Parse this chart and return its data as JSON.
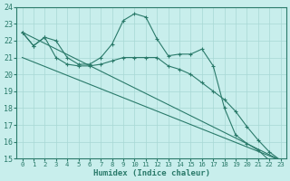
{
  "xlabel": "Humidex (Indice chaleur)",
  "xlim": [
    -0.5,
    23.5
  ],
  "ylim": [
    15,
    24
  ],
  "yticks": [
    15,
    16,
    17,
    18,
    19,
    20,
    21,
    22,
    23,
    24
  ],
  "xticks": [
    0,
    1,
    2,
    3,
    4,
    5,
    6,
    7,
    8,
    9,
    10,
    11,
    12,
    13,
    14,
    15,
    16,
    17,
    18,
    19,
    20,
    21,
    22,
    23
  ],
  "bg_color": "#c8eeec",
  "grid_color": "#a8d8d4",
  "line_color": "#2a7a6a",
  "line1_x": [
    0,
    1,
    2,
    3,
    4,
    5,
    6,
    7,
    8,
    9,
    10,
    11,
    12,
    13,
    14,
    15,
    16,
    17,
    18,
    19,
    20,
    21,
    22,
    23
  ],
  "line1_y": [
    22.5,
    21.7,
    22.2,
    22.0,
    21.0,
    20.6,
    20.6,
    21.0,
    21.8,
    23.2,
    23.6,
    23.4,
    22.1,
    21.1,
    21.2,
    21.2,
    21.5,
    20.5,
    18.0,
    16.4,
    15.9,
    15.5,
    14.9,
    14.9
  ],
  "line2_x": [
    0,
    1,
    2,
    3,
    4,
    5,
    6,
    7,
    8,
    9,
    10,
    11,
    12,
    13,
    14,
    15,
    16,
    17,
    18,
    19,
    20,
    21,
    22,
    23
  ],
  "line2_y": [
    22.5,
    21.7,
    22.2,
    21.0,
    20.6,
    20.5,
    20.5,
    20.6,
    20.8,
    21.0,
    21.0,
    21.0,
    21.0,
    20.5,
    20.3,
    20.0,
    19.5,
    19.0,
    18.5,
    17.8,
    16.9,
    16.1,
    15.4,
    14.9
  ],
  "line3_x": [
    0,
    23
  ],
  "line3_y": [
    22.5,
    14.9
  ],
  "line4_x": [
    0,
    23
  ],
  "line4_y": [
    21.0,
    14.9
  ]
}
